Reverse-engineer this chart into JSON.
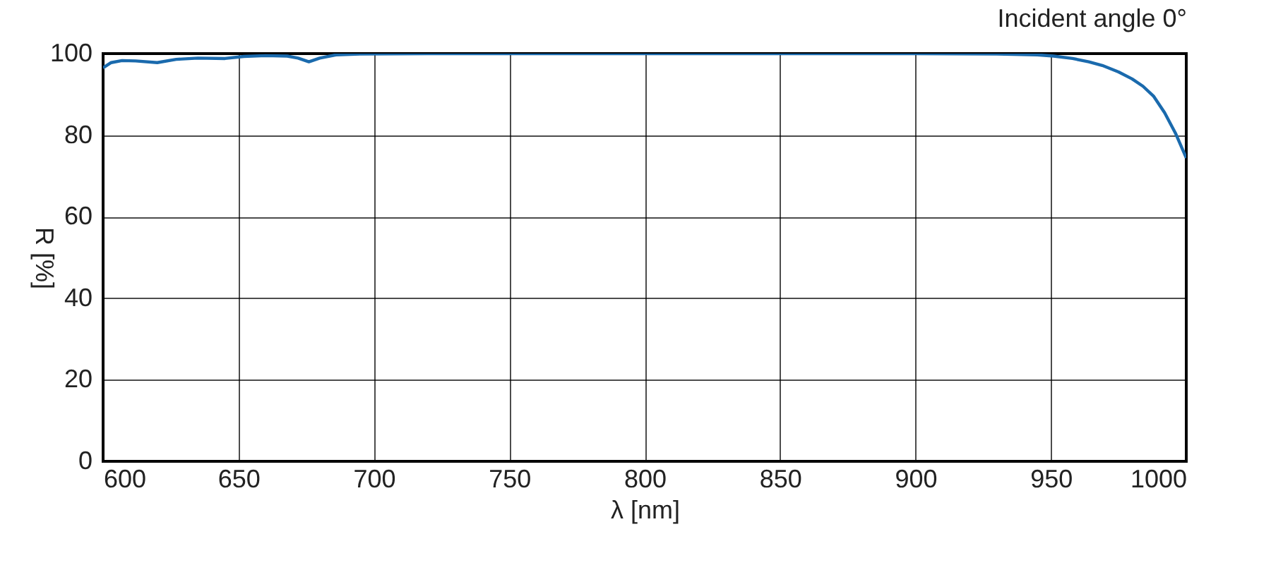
{
  "chart_data": {
    "type": "line",
    "xlabel": "λ [nm]",
    "ylabel": "R [%]",
    "annotations": [
      "Incident angle 0°"
    ],
    "x": [
      600,
      603,
      607,
      612,
      620,
      627,
      635,
      645,
      652,
      660,
      668,
      672,
      676,
      680,
      686,
      695,
      720,
      800,
      900,
      930,
      945,
      951,
      958,
      964,
      969,
      975,
      980,
      984,
      988,
      992,
      996,
      1000
    ],
    "series": [
      {
        "color": "#1a6aad",
        "values": [
          96.5,
          97.8,
          98.3,
          98.2,
          97.8,
          98.6,
          98.9,
          98.8,
          99.3,
          99.5,
          99.4,
          98.9,
          98.0,
          98.9,
          99.7,
          99.9,
          100,
          100,
          100,
          99.9,
          99.7,
          99.4,
          98.8,
          98.0,
          97.1,
          95.5,
          93.8,
          92.0,
          89.5,
          85.5,
          80.5,
          74.4
        ]
      }
    ],
    "xlim": [
      600,
      1000
    ],
    "ylim": [
      0,
      100
    ],
    "xticks": [
      600,
      650,
      700,
      750,
      800,
      850,
      900,
      950,
      1000
    ],
    "yticks": [
      0,
      20,
      40,
      60,
      80,
      100
    ],
    "grid": true,
    "line_style": "solid",
    "marker": "none"
  }
}
